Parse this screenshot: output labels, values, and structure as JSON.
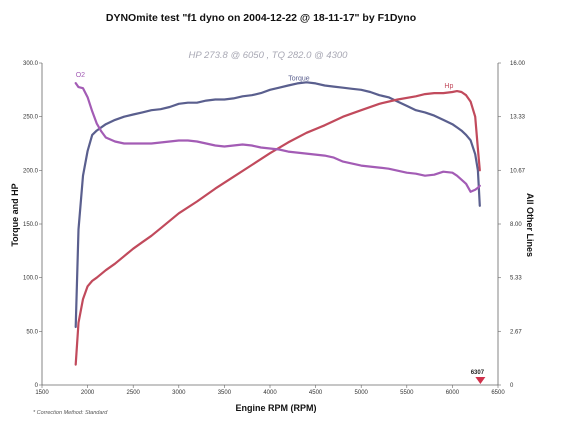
{
  "chart_data": {
    "type": "line",
    "title": "DYNOmite test \"f1 dyno on 2004-12-22 @ 18-11-17\" by F1Dyno",
    "subtitle": "HP 273.8 @ 6050 , TQ 282.0 @ 4300",
    "xlabel": "Engine RPM (RPM)",
    "ylabel_left": "Torque and HP",
    "ylabel_right": "All Other Lines",
    "footnote": "* Correction Method: Standard",
    "x_ticks": [
      "1500",
      "2000",
      "2500",
      "3000",
      "3500",
      "4000",
      "4500",
      "5000",
      "5500",
      "6000",
      "6500"
    ],
    "y_left_ticks": [
      "0",
      "50.0",
      "100.0",
      "150.0",
      "200.0",
      "250.0",
      "300.0"
    ],
    "y_right_ticks": [
      "0",
      "2.67",
      "5.33",
      "8.00",
      "10.67",
      "13.33",
      "16.00"
    ],
    "xlim": [
      1500,
      6500
    ],
    "ylim_left": [
      0,
      300
    ],
    "ylim_right": [
      0,
      16
    ],
    "grid": false,
    "marker": {
      "label": "6307",
      "x": 6307,
      "color": "#d0304a"
    },
    "series": [
      {
        "name": "Torque",
        "axis": "left",
        "color": "#5a5f8e",
        "x": [
          1870,
          1900,
          1950,
          2000,
          2050,
          2100,
          2200,
          2300,
          2400,
          2500,
          2600,
          2700,
          2800,
          2900,
          3000,
          3100,
          3200,
          3300,
          3400,
          3500,
          3600,
          3700,
          3800,
          3900,
          4000,
          4100,
          4200,
          4300,
          4400,
          4500,
          4600,
          4700,
          4800,
          4900,
          5000,
          5100,
          5200,
          5300,
          5400,
          5500,
          5600,
          5700,
          5800,
          5900,
          6000,
          6050,
          6100,
          6150,
          6200,
          6250,
          6280,
          6300
        ],
        "values": [
          54,
          145,
          195,
          218,
          233,
          237,
          243,
          247,
          250,
          252,
          254,
          256,
          257,
          259,
          262,
          263,
          263,
          265,
          266,
          266,
          267,
          269,
          270,
          272,
          275,
          277,
          279,
          281,
          282,
          281,
          279,
          278,
          277,
          276,
          275,
          273,
          270,
          268,
          264,
          260,
          256,
          254,
          251,
          247,
          243,
          240,
          237,
          233,
          228,
          215,
          200,
          167
        ]
      },
      {
        "name": "Hp",
        "axis": "left",
        "color": "#c14a5c",
        "x": [
          1870,
          1900,
          1950,
          2000,
          2050,
          2100,
          2200,
          2300,
          2400,
          2500,
          2600,
          2700,
          2800,
          2900,
          3000,
          3200,
          3400,
          3600,
          3800,
          4000,
          4200,
          4400,
          4600,
          4800,
          5000,
          5200,
          5400,
          5600,
          5700,
          5800,
          5900,
          6000,
          6050,
          6100,
          6150,
          6200,
          6250,
          6280,
          6300
        ],
        "values": [
          19,
          58,
          80,
          92,
          97,
          100,
          107,
          113,
          120,
          127,
          133,
          139,
          146,
          153,
          160,
          171,
          183,
          194,
          205,
          216,
          226,
          235,
          242,
          250,
          256,
          262,
          266,
          269,
          271,
          272,
          272,
          273,
          273.8,
          273,
          270,
          264,
          250,
          220,
          200
        ]
      },
      {
        "name": "O2",
        "axis": "right",
        "color": "#a35cb5",
        "x": [
          1870,
          1900,
          1950,
          2000,
          2050,
          2100,
          2150,
          2200,
          2300,
          2400,
          2500,
          2600,
          2700,
          2800,
          2900,
          3000,
          3100,
          3200,
          3300,
          3400,
          3500,
          3600,
          3700,
          3800,
          3900,
          4000,
          4100,
          4200,
          4300,
          4400,
          4500,
          4600,
          4700,
          4800,
          4900,
          5000,
          5100,
          5200,
          5300,
          5400,
          5500,
          5600,
          5700,
          5800,
          5900,
          6000,
          6050,
          6100,
          6150,
          6200,
          6250,
          6280,
          6300
        ],
        "values": [
          15,
          14.8,
          14.75,
          14.3,
          13.6,
          13.0,
          12.6,
          12.3,
          12.1,
          12.0,
          12.0,
          12.0,
          12.0,
          12.05,
          12.1,
          12.15,
          12.15,
          12.1,
          12.0,
          11.9,
          11.85,
          11.9,
          11.95,
          11.9,
          11.8,
          11.75,
          11.7,
          11.6,
          11.55,
          11.5,
          11.45,
          11.4,
          11.3,
          11.1,
          11.0,
          10.9,
          10.85,
          10.8,
          10.75,
          10.65,
          10.55,
          10.5,
          10.4,
          10.45,
          10.6,
          10.55,
          10.4,
          10.2,
          10.0,
          9.6,
          9.7,
          9.8,
          9.9
        ]
      }
    ]
  }
}
